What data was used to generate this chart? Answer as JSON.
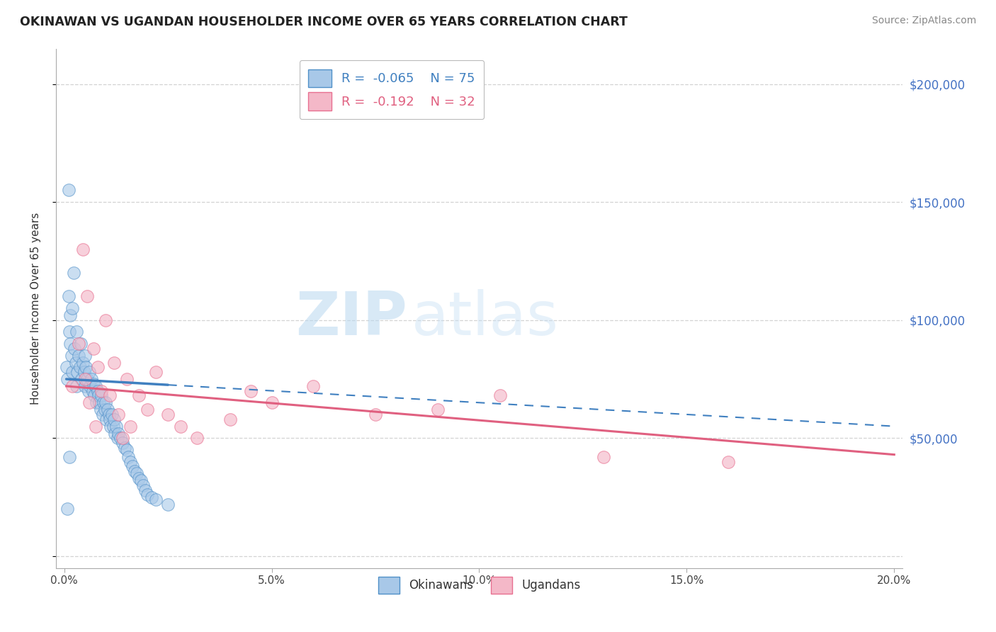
{
  "title": "OKINAWAN VS UGANDAN HOUSEHOLDER INCOME OVER 65 YEARS CORRELATION CHART",
  "source": "Source: ZipAtlas.com",
  "ylabel": "Householder Income Over 65 years",
  "xlabel_ticks": [
    "0.0%",
    "5.0%",
    "10.0%",
    "15.0%",
    "20.0%"
  ],
  "xlabel_vals": [
    0.0,
    5.0,
    10.0,
    15.0,
    20.0
  ],
  "ytick_vals": [
    0,
    50000,
    100000,
    150000,
    200000
  ],
  "ytick_labels": [
    "",
    "$50,000",
    "$100,000",
    "$150,000",
    "$200,000"
  ],
  "watermark_zip": "ZIP",
  "watermark_atlas": "atlas",
  "legend_r1": "R =  -0.065",
  "legend_n1": "N = 75",
  "legend_r2": "R =  -0.192",
  "legend_n2": "N = 32",
  "blue_fill": "#a8c8e8",
  "pink_fill": "#f4b8c8",
  "blue_edge": "#5090c8",
  "pink_edge": "#e87090",
  "blue_line": "#4080c0",
  "pink_line": "#e06080",
  "axis_label_color": "#4472c4",
  "grid_color": "#c8c8c8",
  "title_color": "#222222",
  "source_color": "#888888",
  "okinawan_x": [
    0.05,
    0.08,
    0.1,
    0.12,
    0.15,
    0.15,
    0.18,
    0.2,
    0.2,
    0.22,
    0.25,
    0.28,
    0.3,
    0.3,
    0.32,
    0.35,
    0.38,
    0.4,
    0.42,
    0.45,
    0.48,
    0.5,
    0.5,
    0.52,
    0.55,
    0.58,
    0.6,
    0.62,
    0.65,
    0.68,
    0.7,
    0.72,
    0.75,
    0.78,
    0.8,
    0.82,
    0.85,
    0.88,
    0.9,
    0.92,
    0.95,
    0.98,
    1.0,
    1.02,
    1.05,
    1.08,
    1.1,
    1.12,
    1.15,
    1.18,
    1.2,
    1.22,
    1.25,
    1.28,
    1.3,
    1.35,
    1.4,
    1.45,
    1.5,
    1.55,
    1.6,
    1.65,
    1.7,
    1.75,
    1.8,
    1.85,
    1.9,
    1.95,
    2.0,
    2.1,
    2.2,
    2.5,
    0.1,
    0.08,
    0.12
  ],
  "okinawan_y": [
    80000,
    75000,
    110000,
    95000,
    90000,
    102000,
    85000,
    105000,
    78000,
    120000,
    88000,
    82000,
    95000,
    72000,
    78000,
    85000,
    80000,
    90000,
    75000,
    82000,
    78000,
    85000,
    72000,
    80000,
    75000,
    70000,
    78000,
    72000,
    75000,
    70000,
    73000,
    68000,
    72000,
    65000,
    70000,
    68000,
    65000,
    62000,
    68000,
    60000,
    65000,
    62000,
    65000,
    58000,
    62000,
    60000,
    58000,
    55000,
    60000,
    55000,
    58000,
    52000,
    55000,
    50000,
    52000,
    50000,
    48000,
    46000,
    45000,
    42000,
    40000,
    38000,
    36000,
    35000,
    33000,
    32000,
    30000,
    28000,
    26000,
    25000,
    24000,
    22000,
    155000,
    20000,
    42000
  ],
  "ugandan_x": [
    0.2,
    0.35,
    0.5,
    0.55,
    0.6,
    0.7,
    0.8,
    0.9,
    1.0,
    1.1,
    1.2,
    1.3,
    1.5,
    1.6,
    1.8,
    2.0,
    2.2,
    2.5,
    2.8,
    3.2,
    4.0,
    4.5,
    5.0,
    6.0,
    7.5,
    9.0,
    10.5,
    13.0,
    16.0,
    0.45,
    0.75,
    1.4
  ],
  "ugandan_y": [
    72000,
    90000,
    75000,
    110000,
    65000,
    88000,
    80000,
    70000,
    100000,
    68000,
    82000,
    60000,
    75000,
    55000,
    68000,
    62000,
    78000,
    60000,
    55000,
    50000,
    58000,
    70000,
    65000,
    72000,
    60000,
    62000,
    68000,
    42000,
    40000,
    130000,
    55000,
    50000
  ],
  "blue_trend_x0": 0.05,
  "blue_trend_x1": 20.0,
  "blue_trend_y0": 75000,
  "blue_trend_y1": 55000,
  "blue_solid_end_x": 2.5,
  "pink_trend_x0": 0.05,
  "pink_trend_x1": 20.0,
  "pink_trend_y0": 72000,
  "pink_trend_y1": 43000,
  "xlim": [
    -0.2,
    20.2
  ],
  "ylim": [
    -5000,
    215000
  ]
}
